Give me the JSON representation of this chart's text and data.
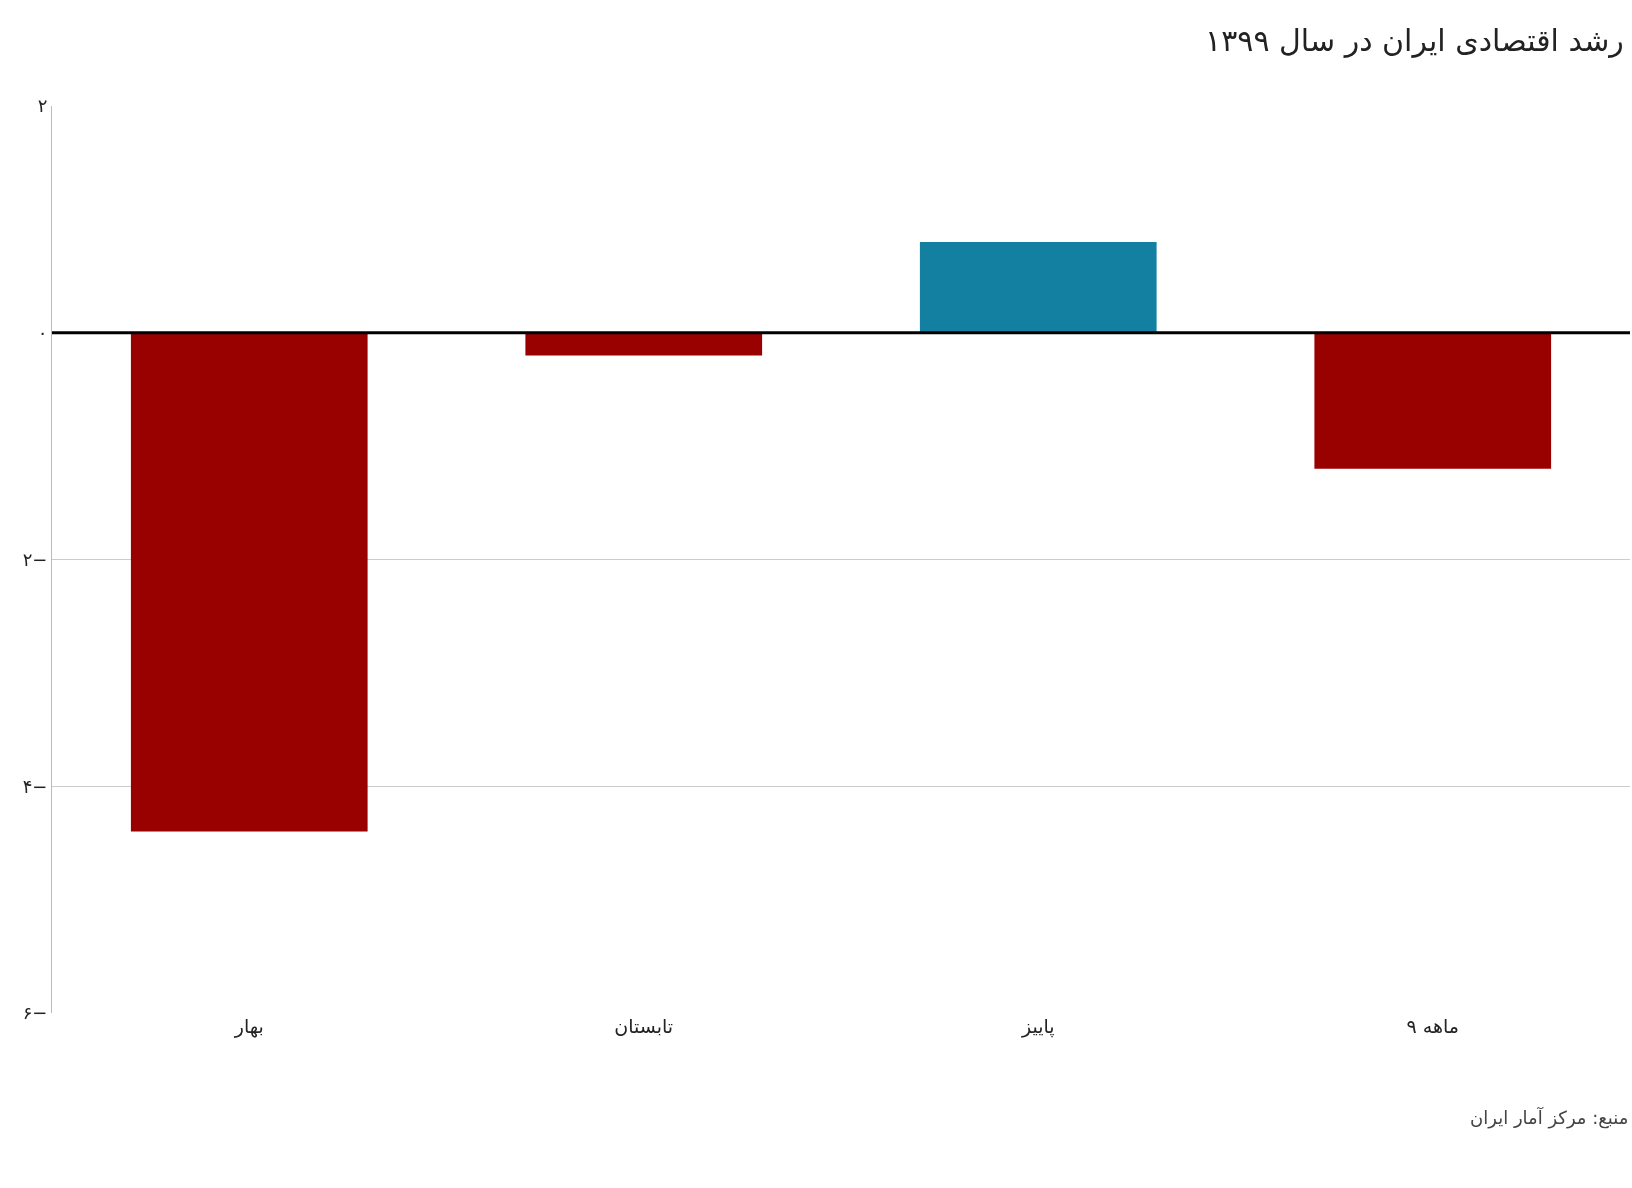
{
  "chart_data": {
    "type": "bar",
    "title": "رشد اقتصادی ایران در سال ۱۳۹۹",
    "categories": [
      "بهار",
      "تابستان",
      "پاییز",
      "۹ ماهه"
    ],
    "values": [
      -4.4,
      -0.2,
      0.8,
      -1.2
    ],
    "colors": [
      "#990000",
      "#990000",
      "#1380a1",
      "#990000"
    ],
    "ylim": [
      -6,
      2
    ],
    "yticks": [
      {
        "value": 2,
        "label": "۲"
      },
      {
        "value": 0,
        "label": "۰"
      },
      {
        "value": -2,
        "label": "۲−"
      },
      {
        "value": -4,
        "label": "۴−"
      },
      {
        "value": -6,
        "label": "۶−"
      }
    ],
    "ref_lines": [
      {
        "axis": "y",
        "value": 0,
        "label": null,
        "color": "#000000"
      }
    ],
    "grid": "y",
    "annotations": [
      "منبع: مرکز آمار ایران"
    ]
  }
}
